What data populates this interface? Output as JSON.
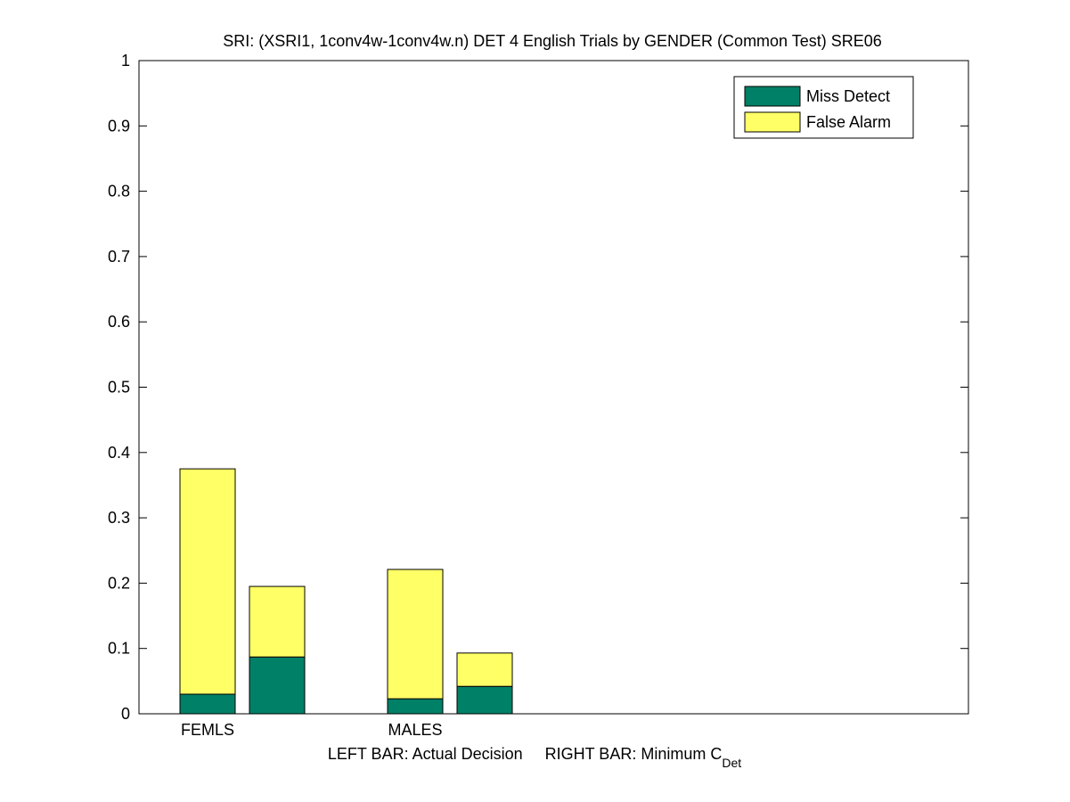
{
  "chart_data": {
    "type": "stacked-bar",
    "title": "SRI: (XSRI1, 1conv4w-1conv4w.n) DET 4 English Trials by GENDER (Common Test) SRE06",
    "x_label": "LEFT BAR: Actual Decision     RIGHT BAR: Minimum C",
    "x_label_subscript": "Det",
    "categories": [
      "FEMLS",
      null,
      "MALES",
      null
    ],
    "series": [
      {
        "name": "Miss Detect",
        "color": "#008066",
        "values": [
          0.03,
          0.087,
          0.023,
          0.042
        ]
      },
      {
        "name": "False Alarm",
        "color": "#ffff66",
        "values": [
          0.345,
          0.108,
          0.198,
          0.051
        ]
      }
    ],
    "ylim": [
      0,
      1
    ],
    "yticks": [
      0,
      0.1,
      0.2,
      0.3,
      0.4,
      0.5,
      0.6,
      0.7,
      0.8,
      0.9,
      1
    ],
    "legend": "upper-right"
  }
}
